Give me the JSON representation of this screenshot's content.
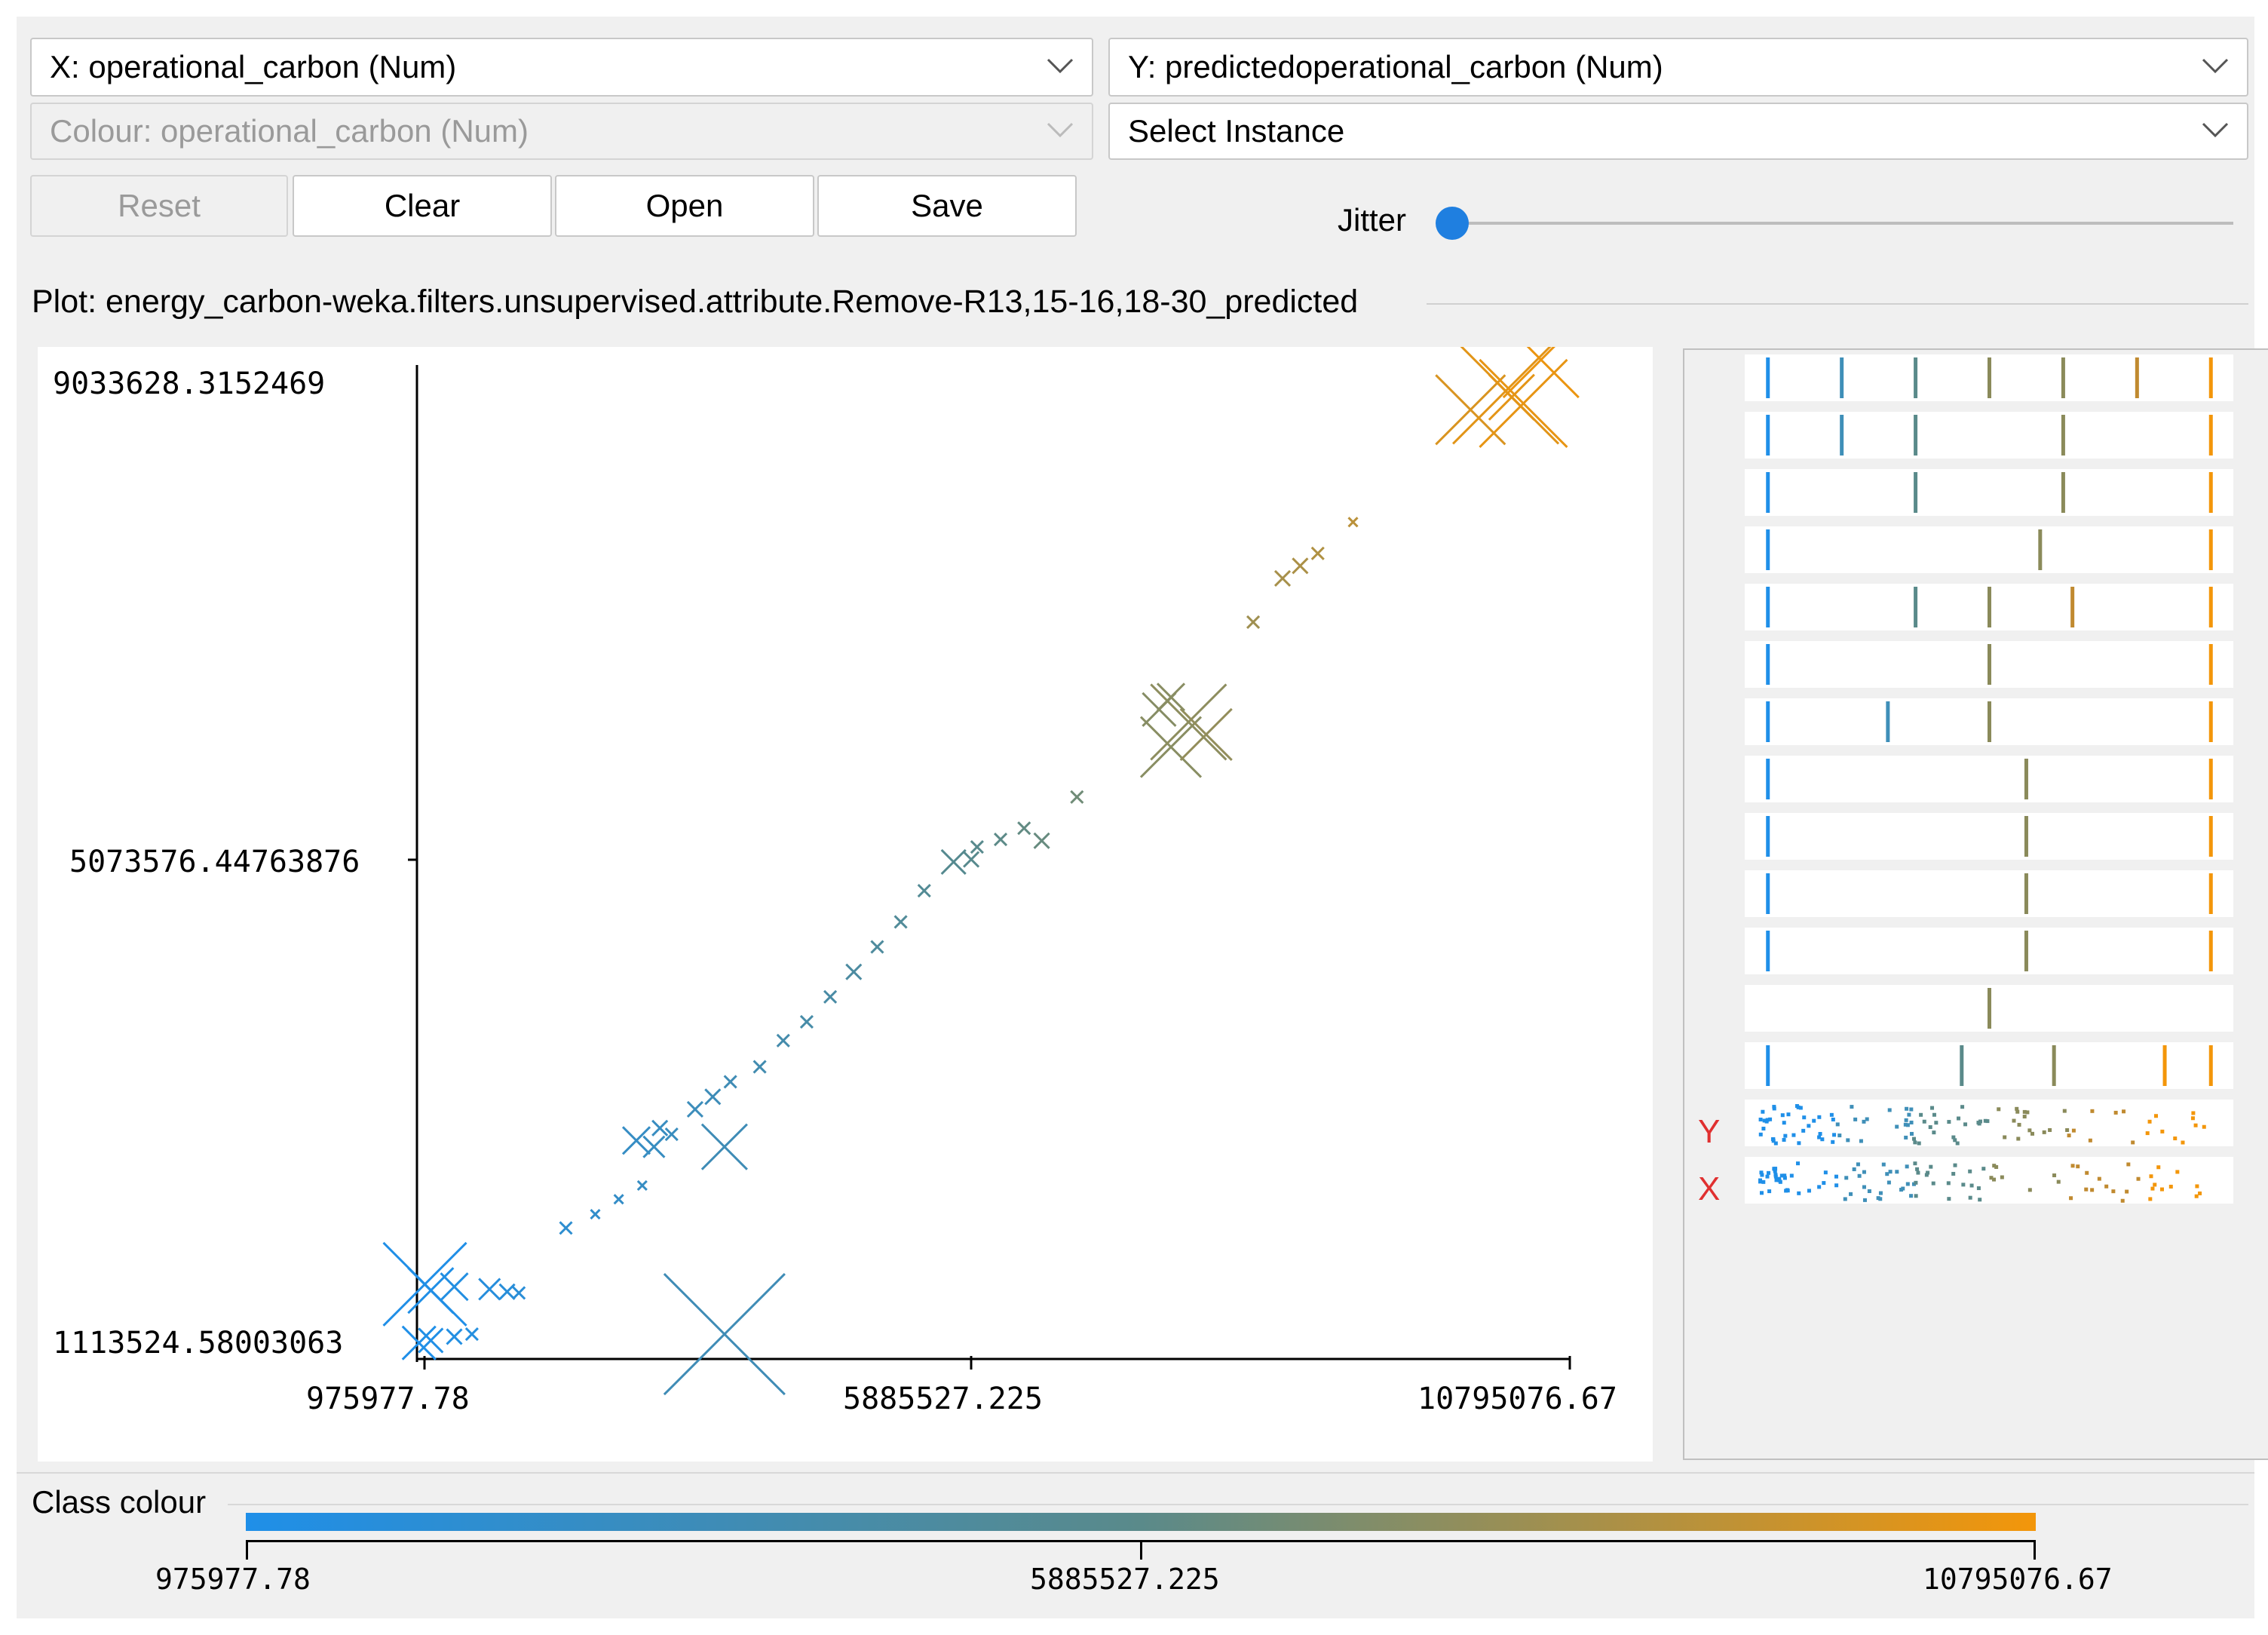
{
  "toolbar": {
    "x_select": "X: operational_carbon (Num)",
    "y_select": "Y: predictedoperational_carbon (Num)",
    "colour_select": "Colour: operational_carbon (Num)",
    "instance_select": "Select Instance",
    "buttons": {
      "reset": "Reset",
      "clear": "Clear",
      "open": "Open",
      "save": "Save"
    },
    "jitter_label": "Jitter",
    "jitter_value": 0
  },
  "plot_title": "Plot: energy_carbon-weka.filters.unsupervised.attribute.Remove-R13,15-16,18-30_predicted",
  "chart_data": {
    "type": "scatter",
    "x_attribute": "operational_carbon",
    "y_attribute": "predictedoperational_carbon",
    "x_ticks": [
      "975977.78",
      "5885527.225",
      "10795076.67"
    ],
    "y_ticks": [
      "9033628.3152469",
      "5073576.44763876",
      "1113524.58003063"
    ],
    "xlim": [
      975977.78,
      10795076.67
    ],
    "ylim": [
      1113524.58003063,
      9033628.3152469
    ],
    "colors": {
      "low": "#1f8fe8",
      "mid": "#5a8a8a",
      "high": "#f3960a"
    },
    "points": [
      [
        1050000,
        1700000,
        55
      ],
      [
        1100000,
        1650000,
        30
      ],
      [
        1300000,
        1680000,
        18
      ],
      [
        1600000,
        1660000,
        14
      ],
      [
        1750000,
        1640000,
        10
      ],
      [
        1850000,
        1630000,
        8
      ],
      [
        1000000,
        1230000,
        22
      ],
      [
        1100000,
        1250000,
        16
      ],
      [
        1300000,
        1280000,
        10
      ],
      [
        1450000,
        1300000,
        8
      ],
      [
        3600000,
        1300000,
        80
      ],
      [
        3600000,
        2800000,
        30
      ],
      [
        2250000,
        2150000,
        8
      ],
      [
        2500000,
        2260000,
        6
      ],
      [
        2700000,
        2380000,
        6
      ],
      [
        2900000,
        2490000,
        6
      ],
      [
        2850000,
        2850000,
        18
      ],
      [
        3000000,
        2800000,
        14
      ],
      [
        3050000,
        2950000,
        10
      ],
      [
        3150000,
        2900000,
        8
      ],
      [
        3350000,
        3100000,
        10
      ],
      [
        3500000,
        3200000,
        10
      ],
      [
        3650000,
        3320000,
        8
      ],
      [
        3900000,
        3440000,
        8
      ],
      [
        4100000,
        3650000,
        8
      ],
      [
        4300000,
        3800000,
        8
      ],
      [
        4500000,
        4000000,
        8
      ],
      [
        4700000,
        4200000,
        10
      ],
      [
        4900000,
        4400000,
        8
      ],
      [
        5100000,
        4600000,
        8
      ],
      [
        5300000,
        4850000,
        8
      ],
      [
        5550000,
        5080000,
        16
      ],
      [
        5750000,
        5200000,
        8
      ],
      [
        5950000,
        5260000,
        8
      ],
      [
        6150000,
        5350000,
        8
      ],
      [
        5700000,
        5100000,
        10
      ],
      [
        6300000,
        5250000,
        10
      ],
      [
        6600000,
        5600000,
        8
      ],
      [
        7400000,
        6000000,
        40
      ],
      [
        7550000,
        6200000,
        50
      ],
      [
        7700000,
        6100000,
        34
      ],
      [
        7300000,
        6300000,
        22
      ],
      [
        7400000,
        6400000,
        18
      ],
      [
        8100000,
        7000000,
        8
      ],
      [
        8350000,
        7350000,
        10
      ],
      [
        8500000,
        7450000,
        10
      ],
      [
        8650000,
        7550000,
        8
      ],
      [
        8950000,
        7800000,
        6
      ],
      [
        9950000,
        8700000,
        46
      ],
      [
        10250000,
        8850000,
        70
      ],
      [
        10400000,
        8750000,
        58
      ],
      [
        10550000,
        9100000,
        50
      ],
      [
        10300000,
        8800000,
        30
      ]
    ]
  },
  "attribute_bars": {
    "class_labels": {
      "y": "Y",
      "x": "X"
    }
  },
  "class_colour": {
    "label": "Class colour",
    "ticks": [
      "975977.78",
      "5885527.225",
      "10795076.67"
    ]
  }
}
